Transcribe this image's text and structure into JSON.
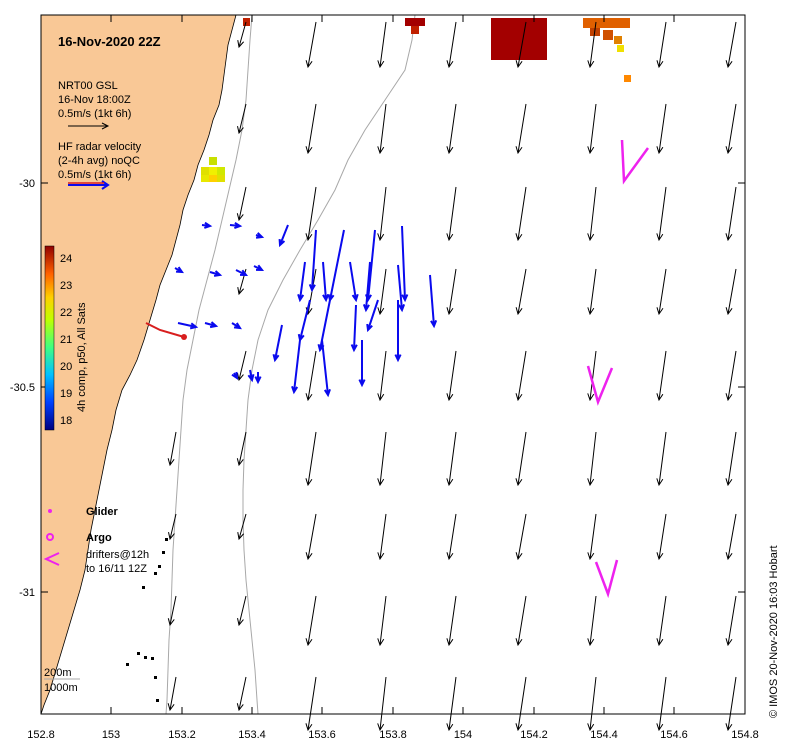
{
  "map": {
    "title": "16-Nov-2020 22Z",
    "credit": "© IMOS 20-Nov-2020 16:03 Hobart",
    "x_ticks": [
      "152.8",
      "153",
      "153.2",
      "153.4",
      "153.6",
      "153.8",
      "154",
      "154.2",
      "154.4",
      "154.6",
      "154.8"
    ],
    "y_ticks": [
      "-30",
      "-30.5",
      "-31"
    ],
    "legend": {
      "gsl_line1": "NRT00 GSL",
      "gsl_line2": "16-Nov 18:00Z",
      "gsl_line3": "0.5m/s (1kt 6h)",
      "hf_line1": "HF radar velocity",
      "hf_line2": "(2-4h avg) noQC",
      "hf_line3": "0.5m/s (1kt 6h)",
      "colorbar_label": "4h comp, p50, All Sats",
      "colorbar_ticks": [
        "24",
        "23",
        "22",
        "21",
        "20",
        "19",
        "18"
      ],
      "glider": "Glider",
      "argo": "Argo",
      "drifters_line1": "drifters@12h",
      "drifters_line2": "to 16/11 12Z",
      "depth_200": "200m",
      "depth_1000": "1000m"
    },
    "colors": {
      "land": "#f9c896",
      "hf_arrow": "#0a0aee",
      "drifter": "#ee22ee",
      "glider": "#d81e1e",
      "isobath": "#a8a8a8"
    }
  }
}
